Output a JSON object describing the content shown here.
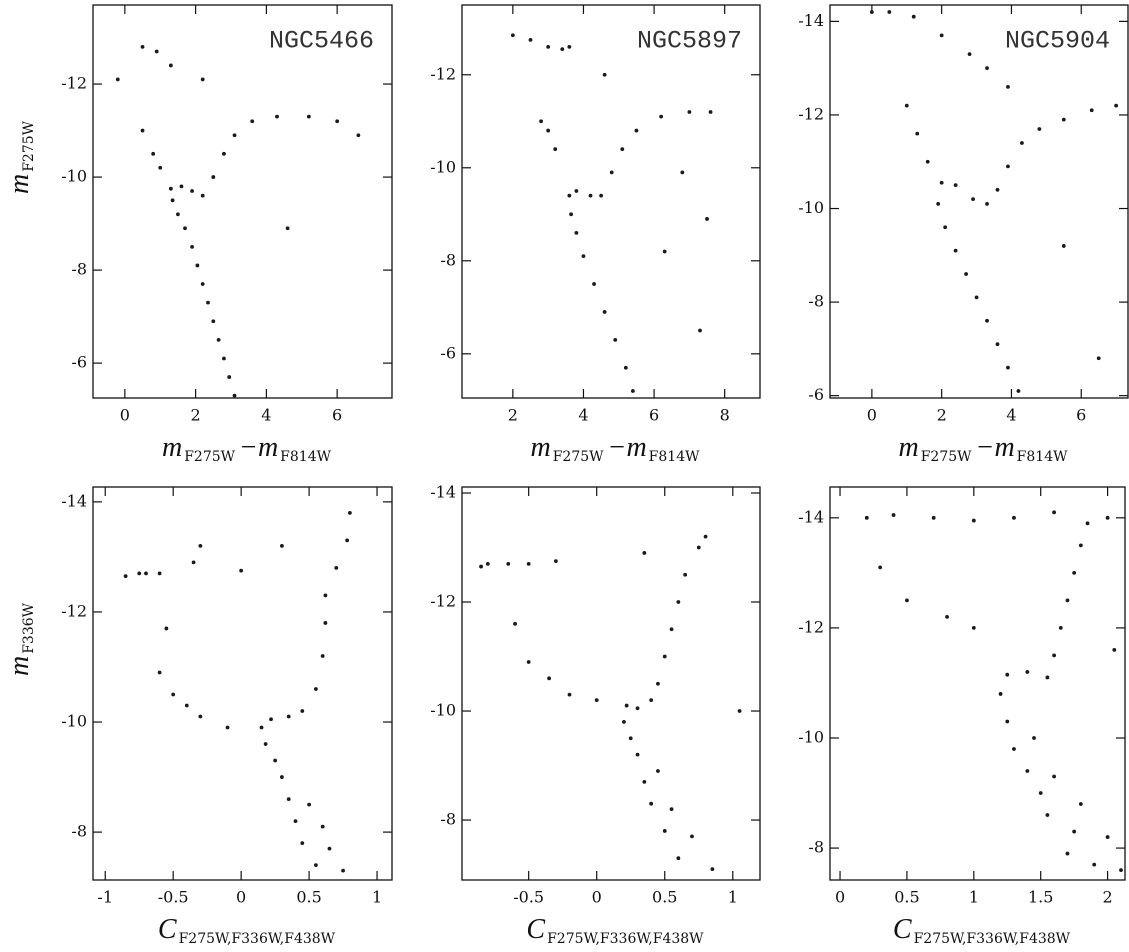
{
  "chart_data": [
    {
      "type": "scatter",
      "title": "NGC5466",
      "xlabel": [
        "m",
        "F275W",
        "−m",
        "F814W"
      ],
      "ylabel": [
        "m",
        "F275W"
      ],
      "color": "#1a1a1a",
      "xlim": [
        -0.9,
        7.55
      ],
      "ylim": [
        -5.25,
        -13.7
      ],
      "xticks": [
        0,
        2,
        4,
        6
      ],
      "yticks": [
        -12,
        -10,
        -8,
        -6
      ],
      "x": [
        3.1,
        2.95,
        2.8,
        2.65,
        2.5,
        2.35,
        2.2,
        2.05,
        1.9,
        1.7,
        1.5,
        1.35,
        1.3,
        1.6,
        1.9,
        2.2,
        2.5,
        2.8,
        3.1,
        3.6,
        4.3,
        5.2,
        6.0,
        0.5,
        0.9,
        1.3,
        2.2,
        0.5,
        0.8,
        1.0,
        -0.2,
        4.6,
        6.6
      ],
      "y": [
        -5.3,
        -5.7,
        -6.1,
        -6.5,
        -6.9,
        -7.3,
        -7.7,
        -8.1,
        -8.5,
        -8.9,
        -9.2,
        -9.5,
        -9.75,
        -9.8,
        -9.7,
        -9.6,
        -10.0,
        -10.5,
        -10.9,
        -11.2,
        -11.3,
        -11.3,
        -11.2,
        -12.8,
        -12.7,
        -12.4,
        -12.1,
        -11.0,
        -10.5,
        -10.2,
        -12.1,
        -8.9,
        -10.9
      ]
    },
    {
      "type": "scatter",
      "title": "NGC5897",
      "xlabel": [
        "m",
        "F275W",
        "−m",
        "F814W"
      ],
      "color": "#1a1a1a",
      "xlim": [
        0.56,
        9.0
      ],
      "ylim": [
        -5.05,
        -13.5
      ],
      "xticks": [
        2,
        4,
        6,
        8
      ],
      "yticks": [
        -12,
        -10,
        -8,
        -6
      ],
      "x": [
        5.4,
        5.2,
        4.9,
        4.6,
        4.3,
        4.0,
        3.8,
        3.65,
        3.6,
        3.8,
        4.2,
        4.5,
        4.8,
        5.1,
        5.5,
        6.2,
        7.0,
        7.6,
        2.0,
        2.5,
        3.0,
        3.4,
        3.6,
        3.0,
        3.2,
        2.8,
        6.3,
        7.5,
        7.3,
        4.6,
        6.8
      ],
      "y": [
        -5.2,
        -5.7,
        -6.3,
        -6.9,
        -7.5,
        -8.1,
        -8.6,
        -9.0,
        -9.4,
        -9.5,
        -9.4,
        -9.4,
        -9.9,
        -10.4,
        -10.8,
        -11.1,
        -11.2,
        -11.2,
        -12.85,
        -12.75,
        -12.6,
        -12.55,
        -12.6,
        -10.8,
        -10.4,
        -11.0,
        -8.2,
        -8.9,
        -6.5,
        -12.0,
        -9.9
      ]
    },
    {
      "type": "scatter",
      "title": "NGC5904",
      "xlabel": [
        "m",
        "F275W",
        "−m",
        "F814W"
      ],
      "color": "#1a1a1a",
      "xlim": [
        -1.2,
        7.34
      ],
      "ylim": [
        -5.95,
        -14.35
      ],
      "xticks": [
        0,
        2,
        4,
        6
      ],
      "yticks": [
        -14,
        -12,
        -10,
        -8,
        -6
      ],
      "x": [
        4.2,
        3.9,
        3.6,
        3.3,
        3.0,
        2.7,
        2.4,
        2.1,
        1.9,
        2.0,
        2.4,
        2.9,
        3.3,
        3.6,
        3.9,
        4.3,
        4.8,
        5.5,
        6.3,
        7.0,
        0.0,
        0.5,
        1.2,
        2.0,
        2.8,
        3.3,
        3.9,
        1.3,
        1.6,
        1.0,
        5.5,
        6.5
      ],
      "y": [
        -6.1,
        -6.6,
        -7.1,
        -7.6,
        -8.1,
        -8.6,
        -9.1,
        -9.6,
        -10.1,
        -10.55,
        -10.5,
        -10.2,
        -10.1,
        -10.4,
        -10.9,
        -11.4,
        -11.7,
        -11.9,
        -12.1,
        -12.2,
        -14.2,
        -14.2,
        -14.1,
        -13.7,
        -13.3,
        -13.0,
        -12.6,
        -11.6,
        -11.0,
        -12.2,
        -9.2,
        -6.8
      ]
    },
    {
      "type": "scatter",
      "xlabel": [
        "C",
        "F275W,F336W,F438W"
      ],
      "ylabel": [
        "m",
        "F336W"
      ],
      "color": "#1a1a1a",
      "xlim": [
        -1.09,
        1.11
      ],
      "ylim": [
        -7.13,
        -14.27
      ],
      "xticks": [
        -1,
        -0.5,
        0,
        0.5,
        1
      ],
      "yticks": [
        -14,
        -12,
        -10,
        -8
      ],
      "x": [
        0.75,
        0.55,
        0.65,
        0.45,
        0.6,
        0.4,
        0.35,
        0.5,
        0.3,
        0.25,
        0.18,
        0.15,
        0.22,
        0.35,
        0.45,
        0.55,
        0.6,
        0.62,
        0.62,
        0.7,
        0.78,
        0.8,
        -0.85,
        -0.75,
        -0.7,
        -0.6,
        -0.35,
        0.0,
        -0.55,
        -0.6,
        -0.5,
        -0.4,
        -0.3,
        -0.1,
        0.3,
        -0.3
      ],
      "y": [
        -7.3,
        -7.4,
        -7.7,
        -7.8,
        -8.1,
        -8.2,
        -8.6,
        -8.5,
        -9.0,
        -9.3,
        -9.6,
        -9.9,
        -10.05,
        -10.1,
        -10.2,
        -10.6,
        -11.2,
        -11.8,
        -12.3,
        -12.8,
        -13.3,
        -13.8,
        -12.65,
        -12.7,
        -12.7,
        -12.7,
        -12.9,
        -12.75,
        -11.7,
        -10.9,
        -10.5,
        -10.3,
        -10.1,
        -9.9,
        -13.2,
        -13.2
      ]
    },
    {
      "type": "scatter",
      "xlabel": [
        "C",
        "F275W,F336W,F438W"
      ],
      "color": "#1a1a1a",
      "xlim": [
        -0.99,
        1.2
      ],
      "ylim": [
        -6.9,
        -14.11
      ],
      "xticks": [
        -0.5,
        0,
        0.5,
        1
      ],
      "yticks": [
        -14,
        -12,
        -10,
        -8
      ],
      "x": [
        0.85,
        0.6,
        0.7,
        0.5,
        0.55,
        0.4,
        0.35,
        0.45,
        0.3,
        0.25,
        0.2,
        0.22,
        0.3,
        0.4,
        0.45,
        0.5,
        0.55,
        0.6,
        0.65,
        0.75,
        0.8,
        -0.85,
        -0.8,
        -0.65,
        -0.5,
        -0.3,
        -0.6,
        -0.5,
        -0.35,
        -0.2,
        0.0,
        0.35,
        1.05
      ],
      "y": [
        -7.1,
        -7.3,
        -7.7,
        -7.8,
        -8.2,
        -8.3,
        -8.7,
        -8.9,
        -9.2,
        -9.5,
        -9.8,
        -10.1,
        -10.05,
        -10.2,
        -10.5,
        -11.0,
        -11.5,
        -12.0,
        -12.5,
        -13.0,
        -13.2,
        -12.65,
        -12.7,
        -12.7,
        -12.7,
        -12.75,
        -11.6,
        -10.9,
        -10.6,
        -10.3,
        -10.2,
        -12.9,
        -10.0
      ]
    },
    {
      "type": "scatter",
      "xlabel": [
        "C",
        "F275W,F336W,F438W"
      ],
      "color": "#1a1a1a",
      "xlim": [
        -0.075,
        2.13
      ],
      "ylim": [
        -7.42,
        -14.56
      ],
      "xticks": [
        0,
        0.5,
        1,
        1.5,
        2
      ],
      "yticks": [
        -14,
        -12,
        -10,
        -8
      ],
      "x": [
        2.1,
        1.9,
        1.7,
        2.0,
        1.75,
        1.55,
        1.8,
        1.5,
        1.4,
        1.6,
        1.3,
        1.45,
        1.25,
        1.2,
        1.25,
        1.4,
        1.55,
        1.6,
        1.65,
        1.7,
        1.75,
        1.8,
        1.85,
        0.2,
        0.4,
        0.7,
        1.0,
        1.3,
        1.6,
        2.0,
        0.5,
        0.8,
        1.0,
        0.3,
        2.05
      ],
      "y": [
        -7.6,
        -7.7,
        -7.9,
        -8.2,
        -8.3,
        -8.6,
        -8.8,
        -9.0,
        -9.4,
        -9.3,
        -9.8,
        -10.0,
        -10.3,
        -10.8,
        -11.15,
        -11.2,
        -11.1,
        -11.5,
        -12.0,
        -12.5,
        -13.0,
        -13.5,
        -13.9,
        -14.0,
        -14.05,
        -14.0,
        -13.95,
        -14.0,
        -14.1,
        -14.0,
        -12.5,
        -12.2,
        -12.0,
        -13.1,
        -11.6
      ]
    }
  ]
}
